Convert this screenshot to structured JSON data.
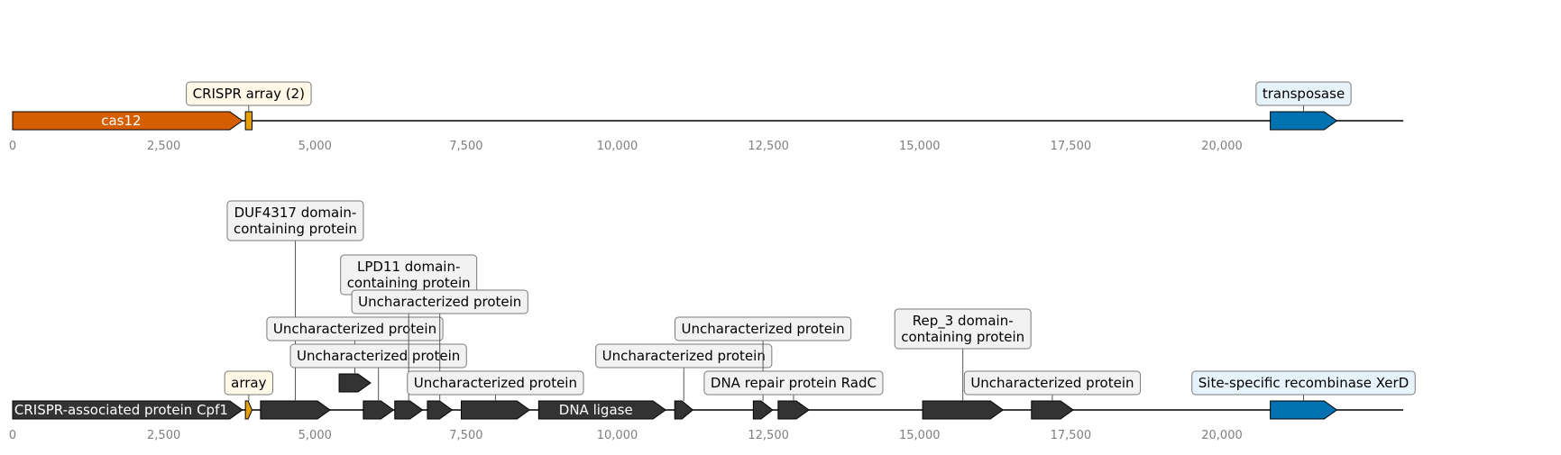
{
  "colors": {
    "cas": "#d55e00",
    "crispr": "#e69f00",
    "transposase": "#0072b2",
    "other": "#333333",
    "axis_text": "#7f7f7f",
    "label_box_crispr": "#fff8e7",
    "label_box_blue": "#e6f3fb",
    "label_box_grey": "#f2f2f2"
  },
  "tracks": [
    {
      "id": "top",
      "axis": {
        "min": 0,
        "max": 23000,
        "ticks": [
          0,
          2500,
          5000,
          7500,
          10000,
          12500,
          15000,
          17500,
          20000
        ],
        "tick_labels": [
          "0",
          "2,500",
          "5,000",
          "7,500",
          "10,000",
          "12,500",
          "15,000",
          "17,500",
          "20,000"
        ]
      },
      "features": [
        {
          "name": "cas12",
          "start": 0,
          "end": 3800,
          "strand": 1,
          "kind": "cas",
          "inside_label": "cas12"
        },
        {
          "name": "crispr-array",
          "start": 3850,
          "end": 3960,
          "strand": 0,
          "kind": "crispr",
          "callout": "CRISPR array (2)",
          "callout_level": 1,
          "callout_style": "crispr"
        },
        {
          "name": "transposase",
          "start": 20800,
          "end": 21900,
          "strand": 1,
          "kind": "transposase",
          "callout": "transposase",
          "callout_level": 1,
          "callout_style": "blue"
        }
      ]
    },
    {
      "id": "bottom",
      "axis": {
        "min": 0,
        "max": 23000,
        "ticks": [
          0,
          2500,
          5000,
          7500,
          10000,
          12500,
          15000,
          17500,
          20000
        ],
        "tick_labels": [
          "0",
          "2,500",
          "5,000",
          "7,500",
          "10,000",
          "12,500",
          "15,000",
          "17,500",
          "20,000"
        ]
      },
      "features": [
        {
          "name": "cpf1",
          "start": 0,
          "end": 3800,
          "strand": 1,
          "kind": "other",
          "inside_label": "CRISPR-associated protein Cpf1"
        },
        {
          "name": "array",
          "start": 3850,
          "end": 3960,
          "strand": 1,
          "kind": "crispr",
          "callout": "array",
          "callout_level": 1,
          "callout_style": "crispr"
        },
        {
          "name": "duf4317",
          "start": 4100,
          "end": 5250,
          "strand": 1,
          "kind": "other",
          "callout": "DUF4317 domain-\ncontaining protein",
          "callout_level": 7,
          "callout_style": "grey"
        },
        {
          "name": "unchar-a",
          "start": 5400,
          "end": 5920,
          "strand": 1,
          "kind": "other",
          "callout": "Uncharacterized protein",
          "callout_level": 3,
          "callout_style": "grey",
          "raised": true
        },
        {
          "name": "unchar-b",
          "start": 5800,
          "end": 6300,
          "strand": 1,
          "kind": "other",
          "callout": "Uncharacterized protein",
          "callout_level": 2,
          "callout_style": "grey"
        },
        {
          "name": "lpd11",
          "start": 6320,
          "end": 6780,
          "strand": 1,
          "kind": "other",
          "callout": "LPD11 domain-\ncontaining protein",
          "callout_level": 5,
          "callout_style": "grey"
        },
        {
          "name": "unchar-c",
          "start": 6860,
          "end": 7270,
          "strand": 1,
          "kind": "other",
          "callout": "Uncharacterized protein",
          "callout_level": 4,
          "callout_style": "grey"
        },
        {
          "name": "unchar-d",
          "start": 7420,
          "end": 8550,
          "strand": 1,
          "kind": "other",
          "callout": "Uncharacterized protein",
          "callout_level": 1,
          "callout_style": "grey"
        },
        {
          "name": "dna-ligase",
          "start": 8700,
          "end": 10800,
          "strand": 1,
          "kind": "other",
          "inside_label": "DNA ligase"
        },
        {
          "name": "unchar-e",
          "start": 10950,
          "end": 11250,
          "strand": 1,
          "kind": "other",
          "callout": "Uncharacterized protein",
          "callout_level": 2,
          "callout_style": "grey"
        },
        {
          "name": "unchar-f",
          "start": 12250,
          "end": 12570,
          "strand": 1,
          "kind": "other",
          "callout": "Uncharacterized protein",
          "callout_level": 3,
          "callout_style": "grey"
        },
        {
          "name": "radc",
          "start": 12660,
          "end": 13170,
          "strand": 1,
          "kind": "other",
          "callout": "DNA repair protein RadC",
          "callout_level": 1,
          "callout_style": "grey"
        },
        {
          "name": "rep3",
          "start": 15050,
          "end": 16380,
          "strand": 1,
          "kind": "other",
          "callout": "Rep_3 domain-\ncontaining protein",
          "callout_level": 3,
          "callout_style": "grey"
        },
        {
          "name": "unchar-g",
          "start": 16850,
          "end": 17540,
          "strand": 1,
          "kind": "other",
          "callout": "Uncharacterized protein",
          "callout_level": 1,
          "callout_style": "grey"
        },
        {
          "name": "xerd",
          "start": 20800,
          "end": 21900,
          "strand": 1,
          "kind": "transposase",
          "callout": "Site-specific recombinase XerD",
          "callout_level": 1,
          "callout_style": "blue"
        }
      ]
    }
  ]
}
